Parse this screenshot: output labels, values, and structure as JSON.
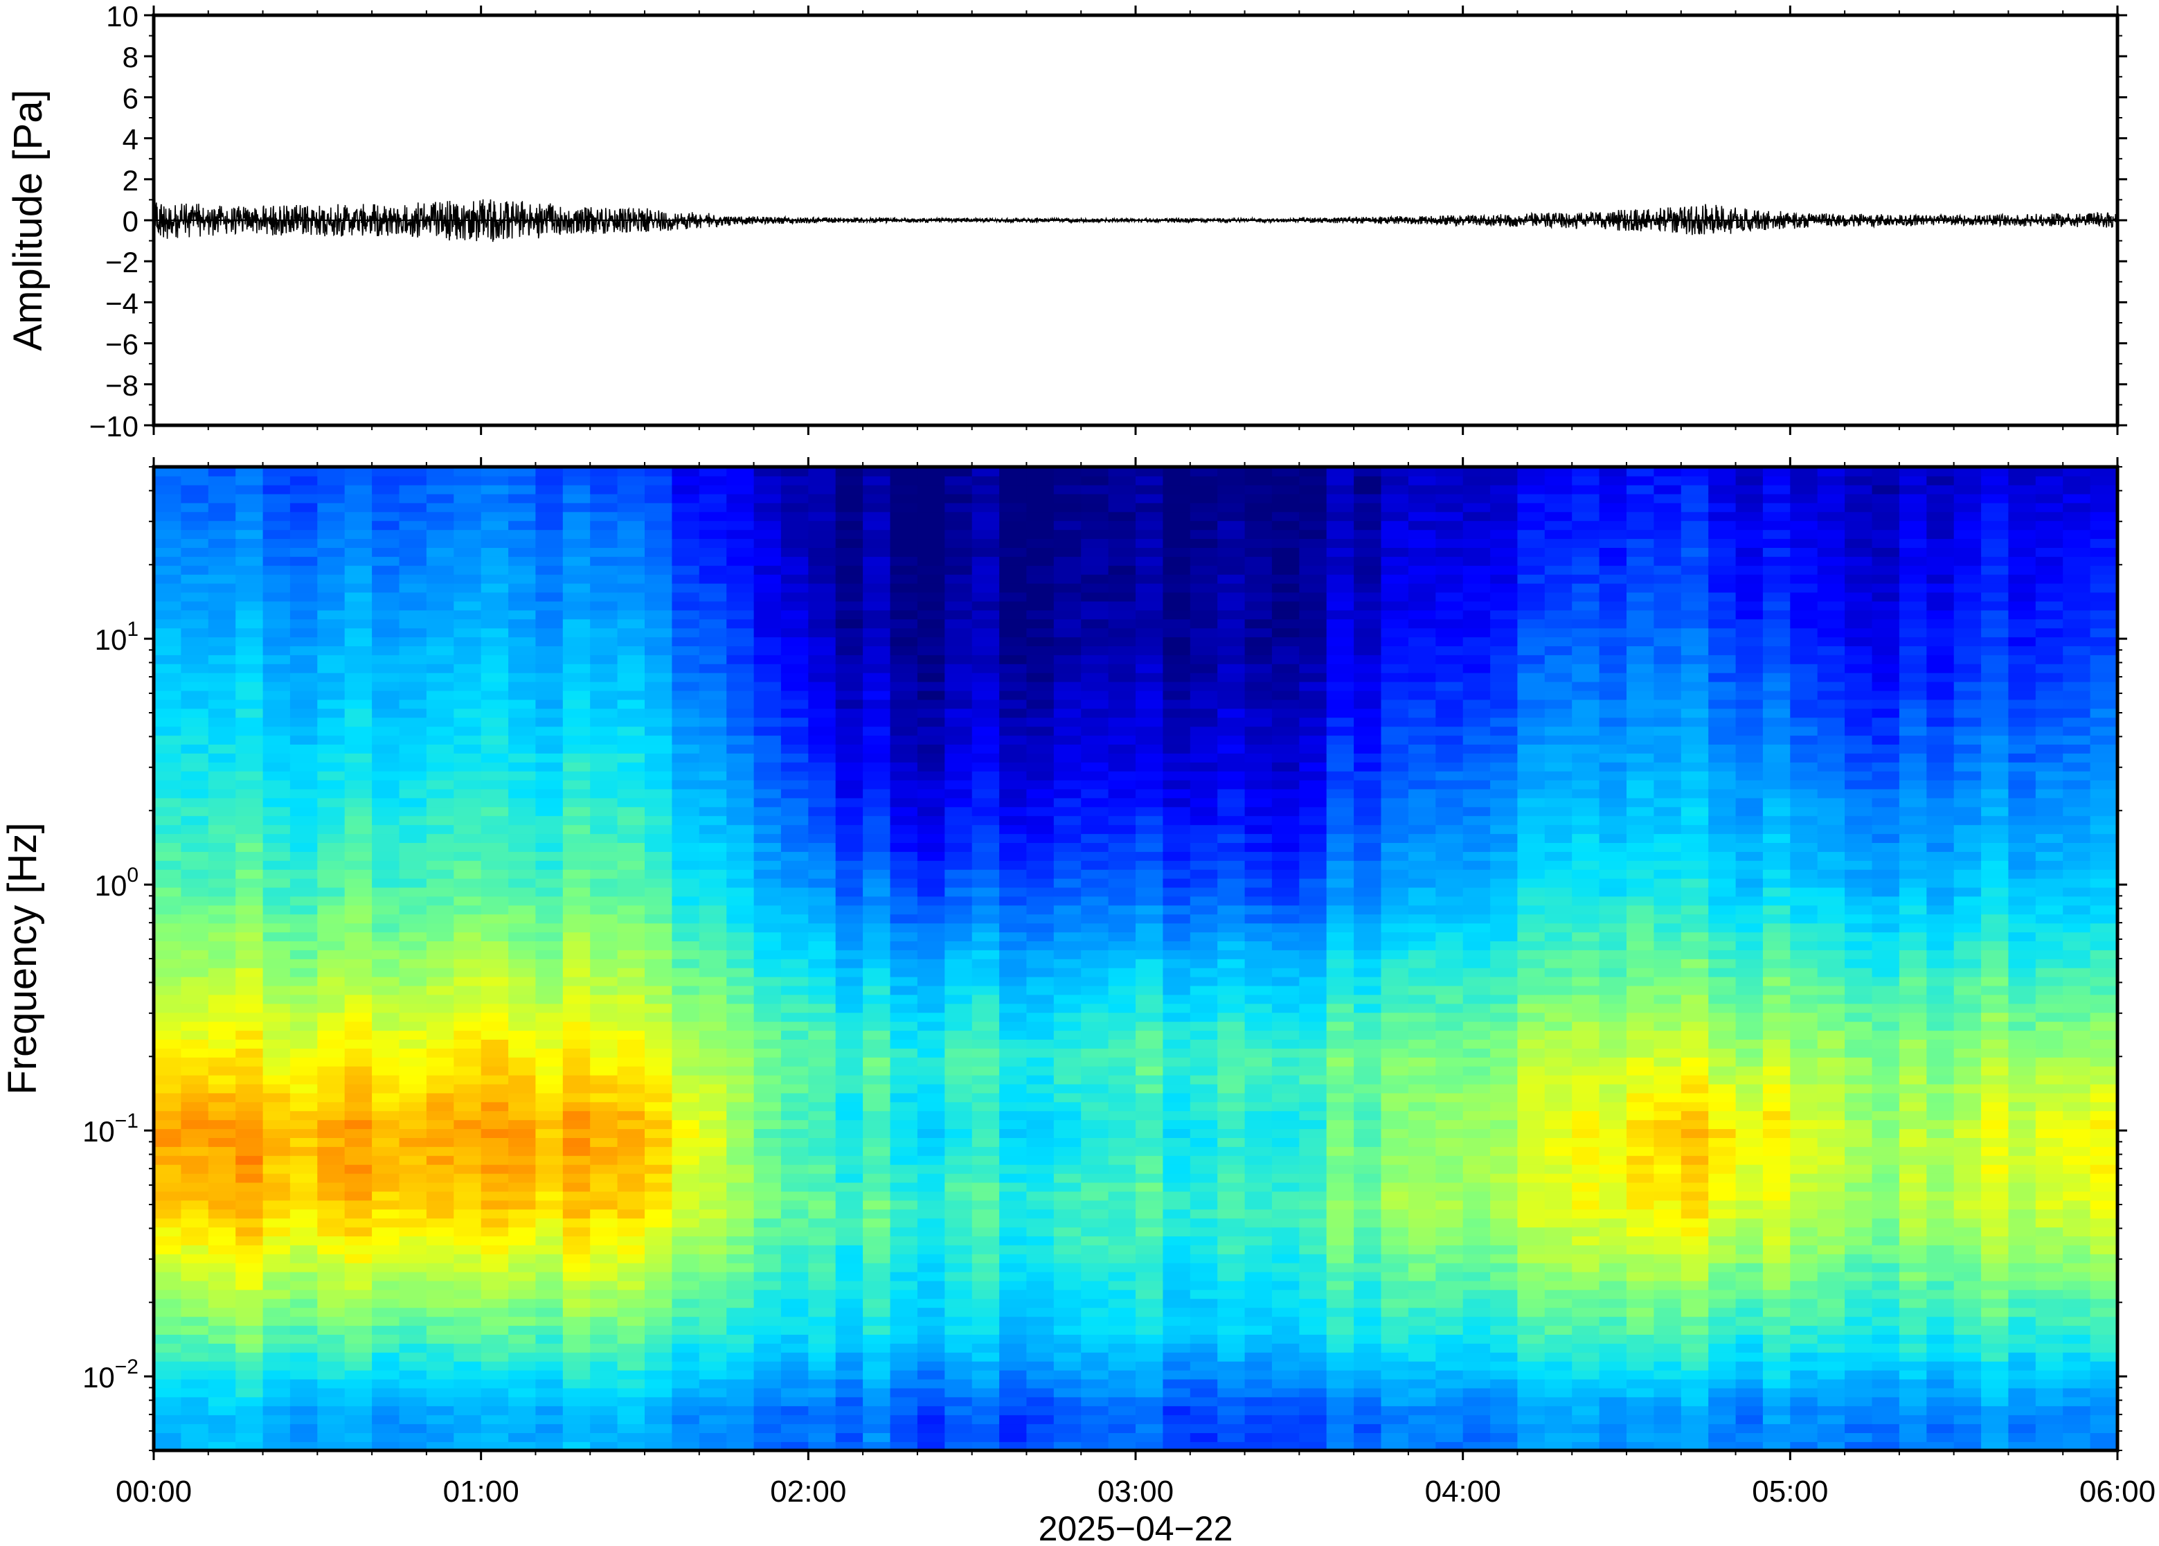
{
  "chart_data": [
    {
      "type": "line",
      "title": "",
      "ylabel": "Amplitude [Pa]",
      "xlabel": "",
      "ylim": [
        -10,
        10
      ],
      "yticks": [
        10,
        8,
        6,
        4,
        2,
        0,
        -2,
        -4,
        -6,
        -8,
        -10
      ],
      "ytick_labels": [
        "10",
        "8",
        "6",
        "4",
        "2",
        "0",
        "−2",
        "−4",
        "−6",
        "−8",
        "−10"
      ],
      "xlim_hours": [
        0,
        6
      ],
      "grid": false,
      "series": [
        {
          "color": "#000000",
          "envelope_time_hours": [
            0.0,
            0.05,
            0.25,
            0.5,
            0.75,
            1.0,
            1.1,
            1.3,
            1.5,
            1.7,
            1.8,
            2.0,
            2.5,
            3.0,
            3.5,
            3.6,
            3.8,
            4.0,
            4.2,
            4.4,
            4.6,
            4.75,
            4.9,
            5.1,
            5.3,
            5.5,
            5.7,
            5.9,
            6.0
          ],
          "envelope_amplitude_pa": [
            1.4,
            0.9,
            0.7,
            0.8,
            0.8,
            1.1,
            1.0,
            0.7,
            0.6,
            0.35,
            0.2,
            0.15,
            0.1,
            0.1,
            0.1,
            0.15,
            0.2,
            0.25,
            0.35,
            0.45,
            0.6,
            0.8,
            0.5,
            0.35,
            0.3,
            0.25,
            0.3,
            0.35,
            0.4
          ]
        }
      ]
    },
    {
      "type": "heatmap",
      "title": "",
      "ylabel": "Frequency [Hz]",
      "xlabel": "2025−04−22",
      "y_scale": "log",
      "ylim_hz": [
        0.005,
        50
      ],
      "yticks": [
        {
          "value": 10,
          "base": "10",
          "exp": "1"
        },
        {
          "value": 1,
          "base": "10",
          "exp": "0"
        },
        {
          "value": 0.1,
          "base": "10",
          "exp": "−1"
        },
        {
          "value": 0.01,
          "base": "10",
          "exp": "−2"
        }
      ],
      "xlim_hours": [
        0,
        6
      ],
      "xtick_labels": [
        "00:00",
        "01:00",
        "02:00",
        "03:00",
        "04:00",
        "05:00",
        "06:00"
      ],
      "colormap": "jet",
      "colormap_stops": [
        "#00007f",
        "#0000ff",
        "#0080ff",
        "#00e0ff",
        "#7fff7f",
        "#ffff00",
        "#ff8000",
        "#ff0000"
      ],
      "power_normalized": {
        "time_hours": [
          0.0,
          0.25,
          0.5,
          0.75,
          1.0,
          1.1,
          1.25,
          1.5,
          1.7,
          1.85,
          2.0,
          2.05,
          2.25,
          2.5,
          2.75,
          3.0,
          3.25,
          3.5,
          3.6,
          3.75,
          4.0,
          4.25,
          4.5,
          4.75,
          5.0,
          5.25,
          5.5,
          5.75,
          6.0
        ],
        "frequency_hz": [
          0.007,
          0.015,
          0.05,
          0.1,
          0.2,
          0.5,
          1,
          3,
          10,
          45
        ],
        "values": [
          [
            0.38,
            0.55,
            0.8,
            0.85,
            0.75,
            0.62,
            0.55,
            0.48,
            0.4,
            0.28
          ],
          [
            0.38,
            0.55,
            0.78,
            0.82,
            0.72,
            0.6,
            0.52,
            0.44,
            0.35,
            0.24
          ],
          [
            0.36,
            0.55,
            0.78,
            0.82,
            0.72,
            0.6,
            0.52,
            0.44,
            0.36,
            0.24
          ],
          [
            0.36,
            0.55,
            0.8,
            0.84,
            0.74,
            0.62,
            0.54,
            0.46,
            0.38,
            0.26
          ],
          [
            0.37,
            0.55,
            0.8,
            0.85,
            0.78,
            0.65,
            0.56,
            0.48,
            0.4,
            0.3
          ],
          [
            0.37,
            0.55,
            0.8,
            0.85,
            0.76,
            0.62,
            0.54,
            0.46,
            0.38,
            0.28
          ],
          [
            0.36,
            0.54,
            0.76,
            0.8,
            0.72,
            0.6,
            0.52,
            0.44,
            0.34,
            0.22
          ],
          [
            0.35,
            0.52,
            0.74,
            0.78,
            0.68,
            0.58,
            0.5,
            0.42,
            0.32,
            0.2
          ],
          [
            0.33,
            0.5,
            0.68,
            0.7,
            0.64,
            0.55,
            0.45,
            0.36,
            0.26,
            0.16
          ],
          [
            0.3,
            0.46,
            0.58,
            0.56,
            0.58,
            0.48,
            0.38,
            0.28,
            0.18,
            0.1
          ],
          [
            0.28,
            0.44,
            0.55,
            0.52,
            0.56,
            0.45,
            0.34,
            0.24,
            0.14,
            0.06
          ],
          [
            0.27,
            0.42,
            0.52,
            0.46,
            0.52,
            0.4,
            0.28,
            0.16,
            0.06,
            0.02
          ],
          [
            0.26,
            0.42,
            0.52,
            0.44,
            0.5,
            0.36,
            0.24,
            0.12,
            0.04,
            0.01
          ],
          [
            0.22,
            0.4,
            0.5,
            0.44,
            0.5,
            0.36,
            0.22,
            0.1,
            0.03,
            0.01
          ],
          [
            0.26,
            0.42,
            0.52,
            0.44,
            0.5,
            0.38,
            0.26,
            0.14,
            0.05,
            0.02
          ],
          [
            0.25,
            0.42,
            0.52,
            0.46,
            0.52,
            0.38,
            0.24,
            0.12,
            0.04,
            0.01
          ],
          [
            0.22,
            0.4,
            0.5,
            0.46,
            0.52,
            0.38,
            0.24,
            0.12,
            0.05,
            0.02
          ],
          [
            0.24,
            0.42,
            0.52,
            0.46,
            0.52,
            0.36,
            0.22,
            0.1,
            0.04,
            0.01
          ],
          [
            0.28,
            0.46,
            0.58,
            0.54,
            0.56,
            0.42,
            0.3,
            0.2,
            0.1,
            0.05
          ],
          [
            0.28,
            0.46,
            0.6,
            0.56,
            0.56,
            0.44,
            0.32,
            0.22,
            0.12,
            0.06
          ],
          [
            0.3,
            0.48,
            0.64,
            0.62,
            0.6,
            0.48,
            0.38,
            0.28,
            0.18,
            0.1
          ],
          [
            0.32,
            0.5,
            0.66,
            0.66,
            0.62,
            0.5,
            0.42,
            0.32,
            0.22,
            0.12
          ],
          [
            0.32,
            0.5,
            0.7,
            0.72,
            0.64,
            0.52,
            0.44,
            0.34,
            0.24,
            0.14
          ],
          [
            0.33,
            0.52,
            0.74,
            0.8,
            0.66,
            0.54,
            0.44,
            0.36,
            0.26,
            0.16
          ],
          [
            0.3,
            0.48,
            0.66,
            0.7,
            0.62,
            0.5,
            0.4,
            0.3,
            0.18,
            0.1
          ],
          [
            0.3,
            0.48,
            0.62,
            0.62,
            0.6,
            0.48,
            0.38,
            0.26,
            0.14,
            0.08
          ],
          [
            0.3,
            0.48,
            0.64,
            0.64,
            0.6,
            0.48,
            0.38,
            0.28,
            0.18,
            0.1
          ],
          [
            0.32,
            0.5,
            0.68,
            0.7,
            0.62,
            0.5,
            0.4,
            0.3,
            0.2,
            0.12
          ],
          [
            0.33,
            0.52,
            0.72,
            0.76,
            0.64,
            0.52,
            0.42,
            0.34,
            0.24,
            0.14
          ]
        ]
      }
    }
  ]
}
